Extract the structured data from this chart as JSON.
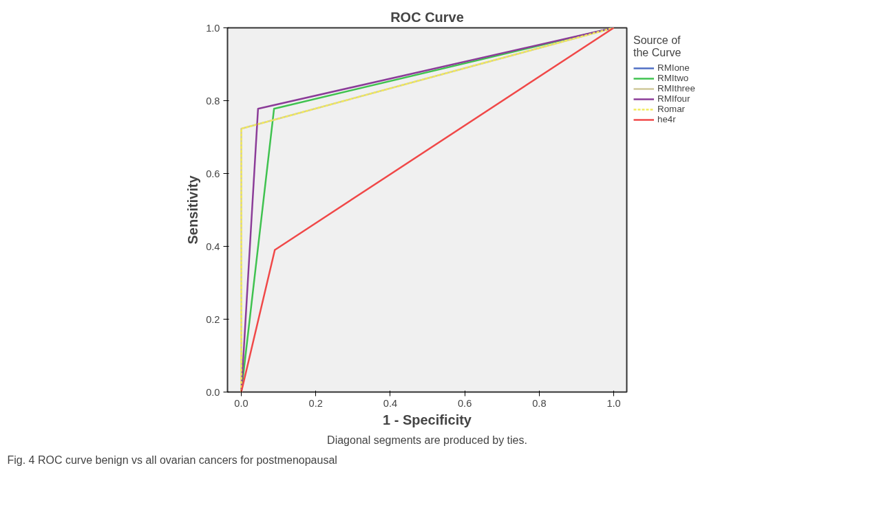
{
  "chart_data": {
    "type": "line",
    "title": "ROC Curve",
    "xlabel": "1 - Specificity",
    "ylabel": "Sensitivity",
    "legend_title": "Source of\nthe Curve",
    "series": [
      {
        "name": "RMIone",
        "color": "#4f6fc4",
        "x": [
          null,
          null,
          null
        ],
        "values": [
          null,
          null,
          null
        ]
      },
      {
        "name": "RMItwo",
        "color": "#3fc24f",
        "x": [
          0,
          0.088,
          1
        ],
        "values": [
          0,
          0.778,
          1
        ]
      },
      {
        "name": "RMIthree",
        "color": "#cfc99a",
        "x": [
          0,
          0,
          1
        ],
        "values": [
          0,
          0.723,
          1
        ]
      },
      {
        "name": "RMIfour",
        "color": "#8b3c98",
        "x": [
          0,
          0.045,
          1
        ],
        "values": [
          0,
          0.778,
          1
        ]
      },
      {
        "name": "Romar",
        "color": "#f2ea5a",
        "x": [
          0,
          0,
          1
        ],
        "values": [
          0,
          0.723,
          1
        ],
        "line_style": "dashed"
      },
      {
        "name": "he4r",
        "color": "#f04848",
        "x": [
          0,
          0.09,
          1
        ],
        "values": [
          0,
          0.39,
          1
        ]
      }
    ],
    "xlim": [
      -0.037,
      1.035
    ],
    "ylim": [
      0,
      1
    ],
    "xticks": [
      {
        "value": 0,
        "label": "0.0"
      },
      0.2,
      0.4,
      0.6,
      0.8,
      {
        "value": 1,
        "label": "1.0"
      }
    ],
    "yticks": [
      {
        "value": 0,
        "label": "0.0"
      },
      0.2,
      0.4,
      0.6,
      0.8,
      {
        "value": 1,
        "label": "1.0"
      }
    ],
    "grid": false,
    "legend": "right",
    "marker": "none",
    "annotations": [
      "Diagonal segments are produced by ties.",
      "Fig. 4 ROC curve benign vs all ovarian cancers for postmenopausal"
    ]
  }
}
